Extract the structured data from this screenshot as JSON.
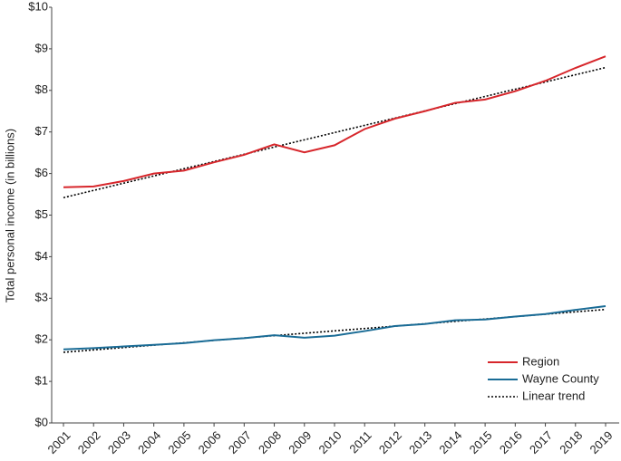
{
  "chart_data": {
    "type": "line",
    "y_label": "Total personal income (in billions)",
    "categories": [
      "2001",
      "2002",
      "2003",
      "2004",
      "2005",
      "2006",
      "2007",
      "2008",
      "2009",
      "2010",
      "2011",
      "2012",
      "2013",
      "2014",
      "2015",
      "2016",
      "2017",
      "2018",
      "2019"
    ],
    "series": [
      {
        "name": "Region",
        "color": "#d7262b",
        "values": [
          5.67,
          5.69,
          5.82,
          6.0,
          6.07,
          6.27,
          6.45,
          6.7,
          6.51,
          6.68,
          7.07,
          7.32,
          7.5,
          7.7,
          7.78,
          7.98,
          8.23,
          8.54,
          8.82
        ],
        "trend_values": [
          5.42,
          8.55
        ]
      },
      {
        "name": "Wayne County",
        "color": "#1a6c96",
        "values": [
          1.77,
          1.8,
          1.84,
          1.88,
          1.92,
          1.99,
          2.04,
          2.11,
          2.05,
          2.1,
          2.21,
          2.33,
          2.38,
          2.47,
          2.49,
          2.56,
          2.62,
          2.72,
          2.81
        ],
        "trend_values": [
          1.7,
          2.73
        ]
      }
    ],
    "trend_name": "Linear trend",
    "trend_color": "#000000",
    "ylim": [
      0,
      10
    ],
    "yticks": [
      {
        "value": 0,
        "label": "$0"
      },
      {
        "value": 1,
        "label": "$1"
      },
      {
        "value": 2,
        "label": "$2"
      },
      {
        "value": 3,
        "label": "$3"
      },
      {
        "value": 4,
        "label": "$4"
      },
      {
        "value": 5,
        "label": "$5"
      },
      {
        "value": 6,
        "label": "$6"
      },
      {
        "value": 7,
        "label": "$7"
      },
      {
        "value": 8,
        "label": "$8"
      },
      {
        "value": 9,
        "label": "$9"
      },
      {
        "value": 10,
        "label": "$10"
      }
    ],
    "grid": false,
    "legend": "lower-right"
  }
}
